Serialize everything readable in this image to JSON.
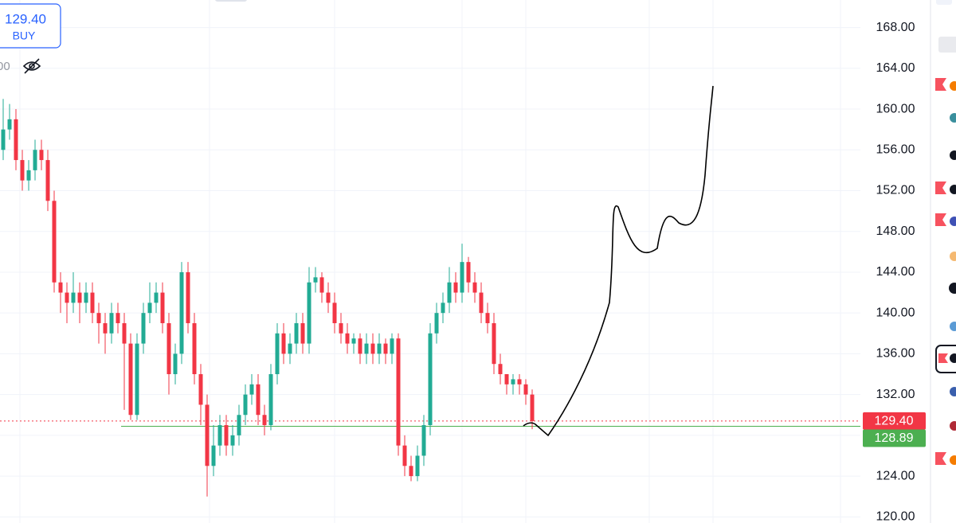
{
  "ui": {
    "buy_price": "129.40",
    "buy_label": "BUY",
    "partial_label": "00"
  },
  "chart_data": {
    "type": "candlestick",
    "up_color": "#22ab94",
    "down_color": "#f23645",
    "grid": true,
    "ylim": [
      119.4,
      170.7
    ],
    "yticks": [
      {
        "value": 120,
        "label": "120.00"
      },
      {
        "value": 124,
        "label": "124.00"
      },
      {
        "value": 128,
        "label": "128.00"
      },
      {
        "value": 132,
        "label": "132.00"
      },
      {
        "value": 136,
        "label": "136.00"
      },
      {
        "value": 140,
        "label": "140.00"
      },
      {
        "value": 144,
        "label": "144.00"
      },
      {
        "value": 148,
        "label": "148.00"
      },
      {
        "value": 152,
        "label": "152.00"
      },
      {
        "value": 156,
        "label": "156.00"
      },
      {
        "value": 160,
        "label": "160.00"
      },
      {
        "value": 164,
        "label": "164.00"
      },
      {
        "value": 168,
        "label": "168.00"
      }
    ],
    "open": [
      156,
      158,
      159,
      155,
      153,
      154,
      156,
      155,
      151,
      143,
      142,
      141,
      142,
      141,
      142,
      140,
      139,
      138,
      140,
      139,
      137,
      130,
      137,
      140,
      141,
      142,
      139,
      134,
      136,
      144,
      139,
      134,
      131,
      125,
      127,
      129,
      127,
      128,
      130,
      132,
      133,
      130,
      129,
      134,
      138,
      136,
      137,
      139,
      137,
      143,
      143.5,
      142,
      141,
      139,
      138,
      137,
      137.5,
      136,
      137,
      136,
      137,
      136,
      137.5,
      127,
      125,
      124,
      126,
      129,
      138,
      140,
      141,
      143,
      142,
      145,
      143,
      142,
      140,
      139,
      135,
      134,
      133,
      133.5,
      133,
      132
    ],
    "high": [
      161,
      160.5,
      160,
      156,
      155,
      157,
      157,
      156,
      152,
      144,
      143,
      144,
      143,
      143,
      143,
      141,
      140,
      141,
      141,
      140,
      138,
      138,
      141,
      143,
      143,
      143,
      140,
      137,
      145,
      145,
      140,
      135,
      132,
      129,
      130,
      130,
      129,
      131,
      133,
      134,
      134,
      131,
      135,
      139,
      139,
      138,
      140,
      140,
      144.5,
      144.5,
      144,
      143,
      142,
      140,
      139,
      138,
      138,
      138,
      138,
      138,
      137.5,
      138,
      138,
      128,
      126,
      127,
      130,
      139,
      141,
      142,
      144.5,
      144,
      146.8,
      145.5,
      144,
      143,
      141,
      140,
      136,
      134,
      134,
      134,
      133.5,
      132.5
    ],
    "low": [
      155,
      157,
      154,
      152,
      152,
      153,
      154,
      150,
      142,
      140,
      139,
      140,
      139,
      140,
      139,
      137,
      136,
      137,
      138,
      130.5,
      129.5,
      129.5,
      136,
      139,
      140,
      138,
      132,
      133,
      135,
      138,
      133,
      129,
      122,
      124,
      126,
      126,
      126,
      127,
      129,
      131,
      129,
      128,
      128.5,
      133,
      135,
      135,
      136,
      136,
      136,
      142,
      141,
      140,
      138,
      137,
      136,
      136,
      135,
      135,
      135,
      135,
      135,
      135,
      126,
      124,
      123.5,
      123.5,
      125,
      128,
      137,
      139,
      140,
      141,
      141,
      142,
      141,
      139,
      138,
      134,
      133,
      132,
      132,
      132,
      131,
      128.6
    ],
    "close": [
      158,
      159,
      155,
      153,
      154,
      156,
      155,
      151,
      143,
      142,
      141,
      142,
      141,
      142,
      140,
      139,
      138,
      140,
      139,
      137,
      130,
      137,
      140,
      141,
      142,
      139,
      134,
      136,
      144,
      139,
      134,
      131,
      125,
      127,
      129,
      127,
      128,
      130,
      132,
      133,
      130,
      129,
      134,
      138,
      136,
      137,
      139,
      137,
      143,
      143.5,
      142,
      141,
      139,
      138,
      137,
      137.5,
      136,
      137,
      136,
      137,
      136,
      137.5,
      127,
      125,
      124,
      126,
      129,
      138,
      140,
      141,
      143,
      142,
      145,
      143,
      142,
      140,
      139,
      135,
      134,
      133,
      133.5,
      133,
      132,
      129.4
    ],
    "price_lines": [
      {
        "value": 129.4,
        "label": "129.40",
        "color": "#f23645",
        "style": "dotted"
      },
      {
        "value": 128.89,
        "label": "128.89",
        "color": "#4caf50",
        "style": "solid"
      }
    ]
  }
}
